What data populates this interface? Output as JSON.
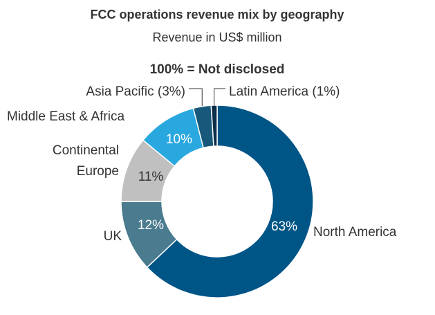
{
  "chart_data": {
    "type": "donut",
    "title": "FCC operations revenue mix by geography",
    "subtitle": "Revenue in US$ million",
    "total_label": "100% = Not disclosed",
    "categories": [
      "North America",
      "UK",
      "Continental Europe",
      "Middle East & Africa",
      "Asia Pacific (3%)",
      "Latin America (1%)"
    ],
    "values": [
      63,
      12,
      11,
      10,
      3,
      1
    ],
    "value_labels": [
      "63%",
      "12%",
      "11%",
      "10%",
      null,
      null
    ],
    "colors": [
      "#005587",
      "#4a7b8e",
      "#c0c0c0",
      "#29a8e0",
      "#18587a",
      "#0b2f4b"
    ]
  }
}
